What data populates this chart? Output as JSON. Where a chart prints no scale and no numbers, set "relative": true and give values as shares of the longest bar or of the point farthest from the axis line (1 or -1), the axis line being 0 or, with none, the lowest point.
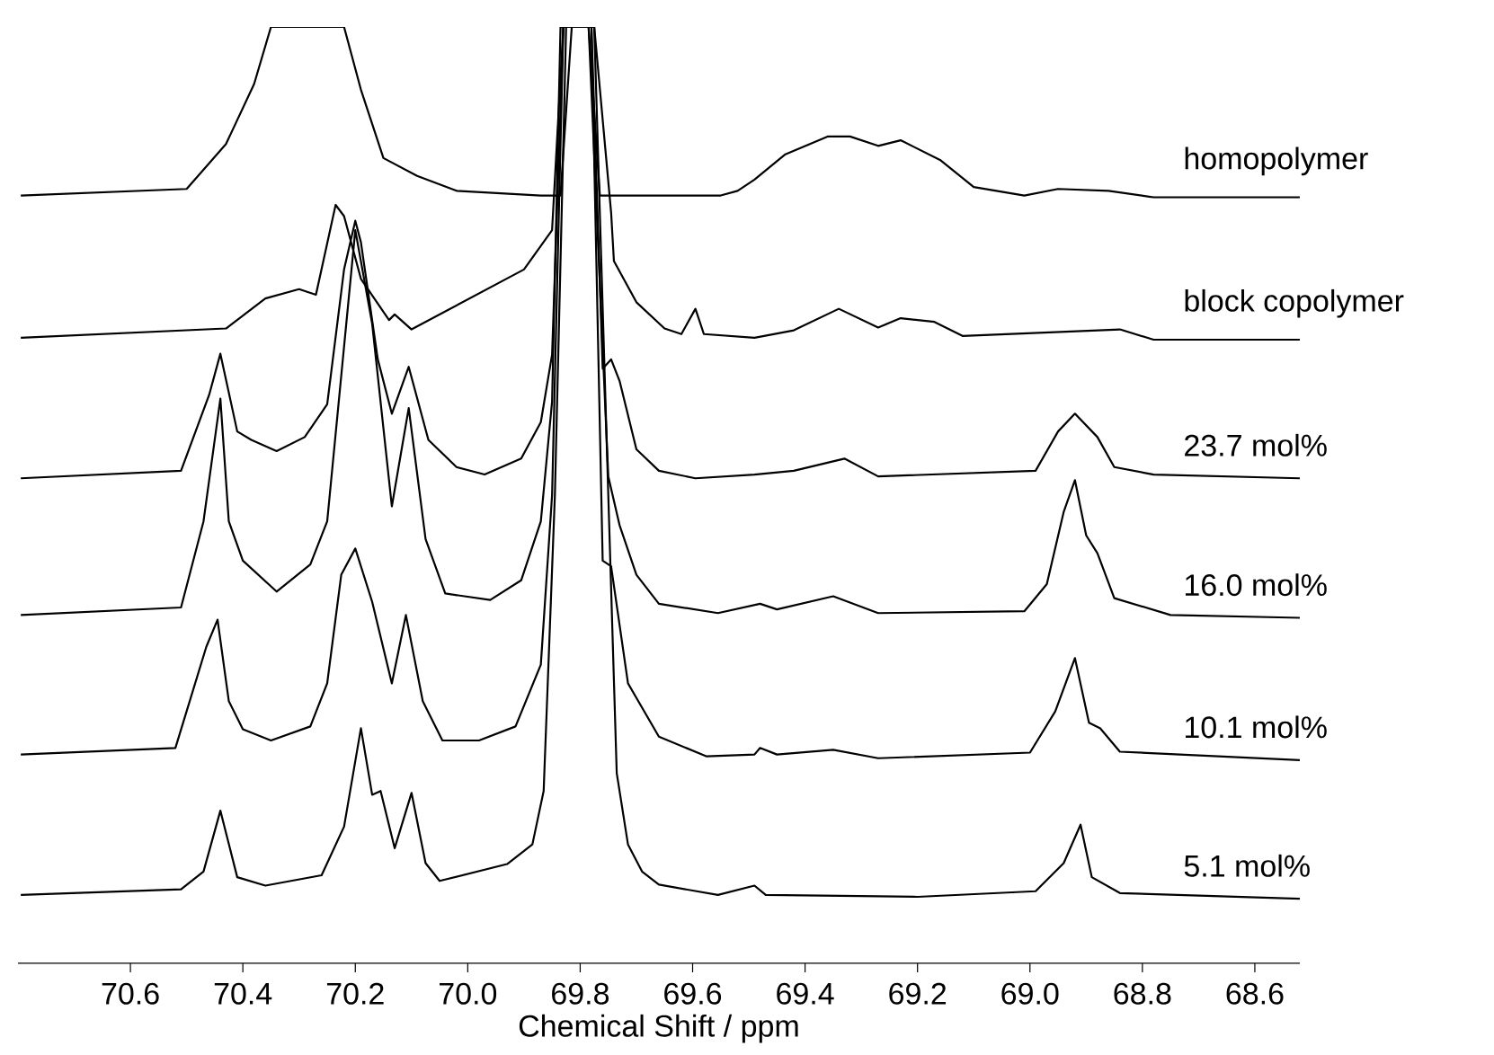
{
  "chart_data": {
    "type": "line",
    "relative": true,
    "xlabel": "Chemical Shift / ppm",
    "xlim": [
      70.8,
      68.52
    ],
    "xticks": [
      70.6,
      70.4,
      70.2,
      {
        "value": 70.0,
        "label": "70.0"
      },
      69.8,
      69.6,
      69.4,
      69.2,
      {
        "value": 69.0,
        "label": "69.0"
      },
      68.8,
      68.6
    ],
    "marker": "none",
    "line_style": "solid",
    "series": [
      {
        "name": "homopolymer",
        "color": "#000000",
        "x": [
          70.795,
          70.5,
          70.43,
          70.38,
          70.35,
          70.22,
          70.19,
          70.15,
          70.09,
          70.02,
          69.87,
          69.835,
          69.815,
          69.785,
          69.765,
          69.55,
          69.52,
          69.49,
          69.435,
          69.36,
          69.32,
          69.27,
          69.23,
          69.16,
          69.1,
          69.01,
          68.95,
          68.86,
          68.78,
          68.52
        ],
        "values": [
          0.82,
          0.827,
          0.875,
          0.939,
          1.0,
          1.0,
          0.933,
          0.86,
          0.841,
          0.825,
          0.82,
          0.82,
          1.0,
          1.0,
          0.82,
          0.82,
          0.825,
          0.837,
          0.864,
          0.883,
          0.883,
          0.873,
          0.879,
          0.858,
          0.829,
          0.82,
          0.827,
          0.825,
          0.818,
          0.818
        ]
      },
      {
        "name": "block copolymer",
        "color": "#000000",
        "x": [
          70.795,
          70.43,
          70.36,
          70.3,
          70.27,
          70.235,
          70.22,
          70.19,
          70.14,
          70.13,
          70.1,
          69.9,
          69.85,
          69.83,
          69.775,
          69.745,
          69.74,
          69.7,
          69.65,
          69.62,
          69.595,
          69.58,
          69.49,
          69.42,
          69.34,
          69.27,
          69.23,
          69.17,
          69.12,
          68.84,
          68.78,
          68.52
        ],
        "values": [
          0.668,
          0.678,
          0.71,
          0.72,
          0.714,
          0.81,
          0.798,
          0.731,
          0.687,
          0.693,
          0.677,
          0.741,
          0.783,
          1.0,
          1.0,
          0.802,
          0.75,
          0.706,
          0.678,
          0.672,
          0.699,
          0.672,
          0.668,
          0.676,
          0.699,
          0.679,
          0.689,
          0.685,
          0.67,
          0.677,
          0.666,
          0.666
        ]
      },
      {
        "name": "23.7 mol%",
        "color": "#000000",
        "x": [
          70.795,
          70.51,
          70.46,
          70.44,
          70.41,
          70.385,
          70.34,
          70.29,
          70.25,
          70.22,
          70.2,
          70.19,
          70.16,
          70.135,
          70.105,
          70.07,
          70.02,
          69.97,
          69.905,
          69.87,
          69.85,
          69.83,
          69.78,
          69.76,
          69.745,
          69.73,
          69.7,
          69.66,
          69.595,
          69.49,
          69.42,
          69.33,
          69.27,
          68.99,
          68.95,
          68.92,
          68.88,
          68.85,
          68.78,
          68.52
        ],
        "values": [
          0.518,
          0.526,
          0.607,
          0.651,
          0.568,
          0.559,
          0.547,
          0.562,
          0.597,
          0.741,
          0.793,
          0.77,
          0.645,
          0.587,
          0.637,
          0.559,
          0.53,
          0.522,
          0.539,
          0.578,
          0.65,
          1.0,
          1.0,
          0.635,
          0.645,
          0.622,
          0.549,
          0.526,
          0.518,
          0.522,
          0.526,
          0.539,
          0.52,
          0.526,
          0.568,
          0.587,
          0.562,
          0.53,
          0.522,
          0.518
        ]
      },
      {
        "name": "16.0 mol%",
        "color": "#000000",
        "x": [
          70.795,
          70.51,
          70.47,
          70.44,
          70.425,
          70.4,
          70.34,
          70.28,
          70.25,
          70.2,
          70.17,
          70.135,
          70.105,
          70.075,
          70.04,
          69.96,
          69.905,
          69.87,
          69.85,
          69.835,
          69.785,
          69.75,
          69.73,
          69.7,
          69.66,
          69.555,
          69.48,
          69.45,
          69.35,
          69.27,
          69.01,
          68.97,
          68.94,
          68.92,
          68.9,
          68.88,
          68.85,
          68.75,
          68.52
        ],
        "values": [
          0.372,
          0.38,
          0.472,
          0.603,
          0.472,
          0.43,
          0.397,
          0.426,
          0.472,
          0.783,
          0.683,
          0.488,
          0.593,
          0.453,
          0.395,
          0.388,
          0.409,
          0.472,
          0.6,
          1.0,
          1.0,
          0.52,
          0.468,
          0.415,
          0.384,
          0.374,
          0.384,
          0.378,
          0.392,
          0.374,
          0.376,
          0.405,
          0.482,
          0.516,
          0.457,
          0.438,
          0.39,
          0.372,
          0.369
        ]
      },
      {
        "name": "10.1 mol%",
        "color": "#000000",
        "x": [
          70.795,
          70.52,
          70.465,
          70.445,
          70.425,
          70.4,
          70.35,
          70.28,
          70.25,
          70.225,
          70.2,
          70.17,
          70.135,
          70.11,
          70.08,
          70.045,
          69.98,
          69.915,
          69.87,
          69.85,
          69.83,
          69.78,
          69.76,
          69.745,
          69.715,
          69.66,
          69.575,
          69.49,
          69.48,
          69.45,
          69.35,
          69.27,
          69.0,
          68.955,
          68.92,
          68.895,
          68.875,
          68.84,
          68.52
        ],
        "values": [
          0.223,
          0.23,
          0.338,
          0.367,
          0.28,
          0.25,
          0.238,
          0.253,
          0.299,
          0.415,
          0.443,
          0.386,
          0.299,
          0.372,
          0.28,
          0.238,
          0.238,
          0.253,
          0.319,
          0.5,
          1.0,
          1.0,
          0.43,
          0.424,
          0.299,
          0.242,
          0.221,
          0.223,
          0.23,
          0.223,
          0.228,
          0.219,
          0.225,
          0.269,
          0.326,
          0.257,
          0.251,
          0.226,
          0.217
        ]
      },
      {
        "name": "5.1 mol%",
        "color": "#000000",
        "x": [
          70.795,
          70.51,
          70.47,
          70.44,
          70.41,
          70.36,
          70.26,
          70.22,
          70.19,
          70.17,
          70.155,
          70.13,
          70.1,
          70.075,
          70.05,
          69.93,
          69.885,
          69.865,
          69.845,
          69.825,
          69.775,
          69.75,
          69.735,
          69.715,
          69.69,
          69.66,
          69.555,
          69.49,
          69.47,
          69.2,
          68.99,
          68.94,
          68.91,
          68.89,
          68.84,
          68.52
        ],
        "values": [
          0.073,
          0.079,
          0.098,
          0.163,
          0.092,
          0.083,
          0.094,
          0.146,
          0.251,
          0.18,
          0.184,
          0.123,
          0.182,
          0.107,
          0.088,
          0.106,
          0.127,
          0.184,
          0.5,
          1.0,
          1.0,
          0.5,
          0.203,
          0.127,
          0.098,
          0.084,
          0.073,
          0.083,
          0.073,
          0.071,
          0.077,
          0.107,
          0.148,
          0.092,
          0.075,
          0.069
        ]
      }
    ]
  }
}
